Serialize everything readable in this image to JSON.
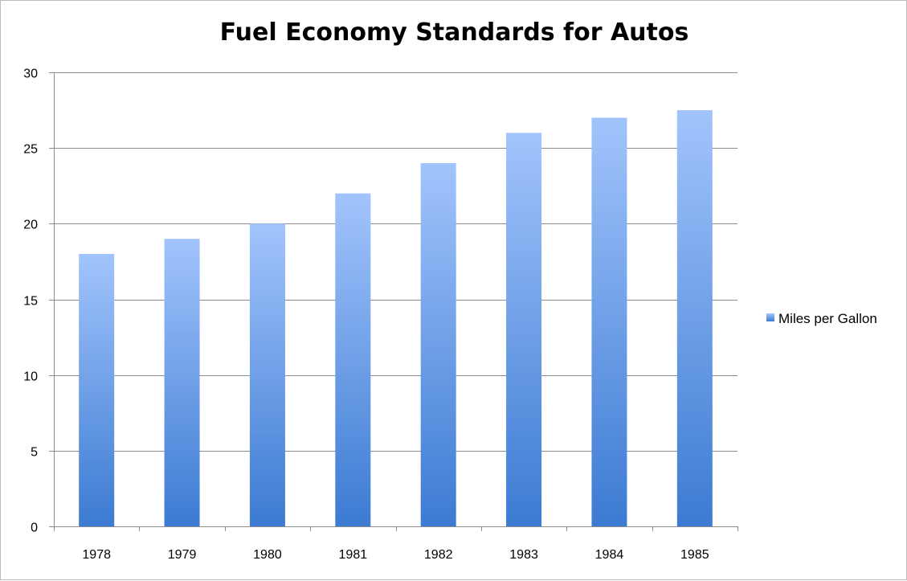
{
  "chart_data": {
    "type": "bar",
    "title": "Fuel Economy Standards for Autos",
    "xlabel": "",
    "ylabel": "",
    "categories": [
      "1978",
      "1979",
      "1980",
      "1981",
      "1982",
      "1983",
      "1984",
      "1985"
    ],
    "series": [
      {
        "name": "Miles per Gallon",
        "values": [
          18,
          19,
          20,
          22,
          24,
          26,
          27,
          27.5
        ]
      }
    ],
    "ylim": [
      0,
      30
    ],
    "yticks": [
      "0",
      "5",
      "10",
      "15",
      "20",
      "25",
      "30"
    ],
    "grid": true,
    "legend_position": "right",
    "colors": {
      "bar_top": "#a2c4fc",
      "bar_bottom": "#3c7bd2",
      "grid": "#8c8c8c",
      "axis": "#8c8c8c"
    }
  }
}
